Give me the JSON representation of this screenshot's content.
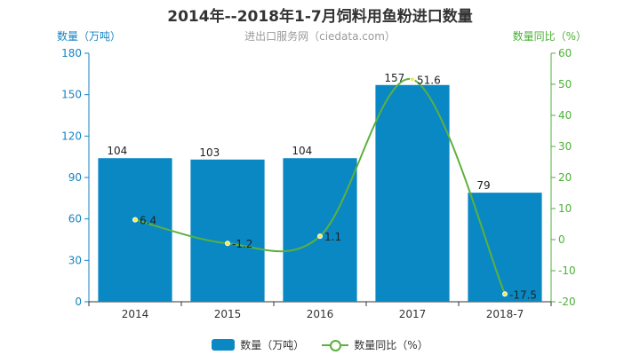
{
  "chart_data": {
    "type": "bar",
    "title": "2014年--2018年1-7月饲料用鱼粉进口数量",
    "subtitle": "进出口服务网（ciedata.com）",
    "categories": [
      "2014",
      "2015",
      "2016",
      "2017",
      "2018-7"
    ],
    "ylabel": "数量（万吨）",
    "y2label": "数量同比（%）",
    "ylim": [
      0,
      180
    ],
    "y2lim": [
      -20,
      60
    ],
    "yticks": [
      "0",
      "30",
      "60",
      "90",
      "120",
      "150",
      "180"
    ],
    "y2ticks": [
      "-20",
      "-10",
      "0",
      "10",
      "20",
      "30",
      "40",
      "50",
      "60"
    ],
    "series": [
      {
        "name": "数量（万吨）",
        "type": "bar",
        "axis": "left",
        "values": [
          104,
          103,
          104,
          157,
          79
        ],
        "labels": [
          "104",
          "103",
          "104",
          "157",
          "79"
        ]
      },
      {
        "name": "数量同比（%）",
        "type": "line",
        "axis": "right",
        "values": [
          6.4,
          -1.2,
          1.1,
          51.6,
          -17.5
        ],
        "labels": [
          "6.4",
          "-1.2",
          "1.1",
          "51.6",
          "-17.5"
        ]
      }
    ],
    "colors": {
      "bar": "#0a88c4",
      "line": "#5cb13d",
      "left_axis": "#1683c3",
      "right_axis": "#4cb138"
    },
    "legend_position": "bottom-center",
    "grid": false
  }
}
